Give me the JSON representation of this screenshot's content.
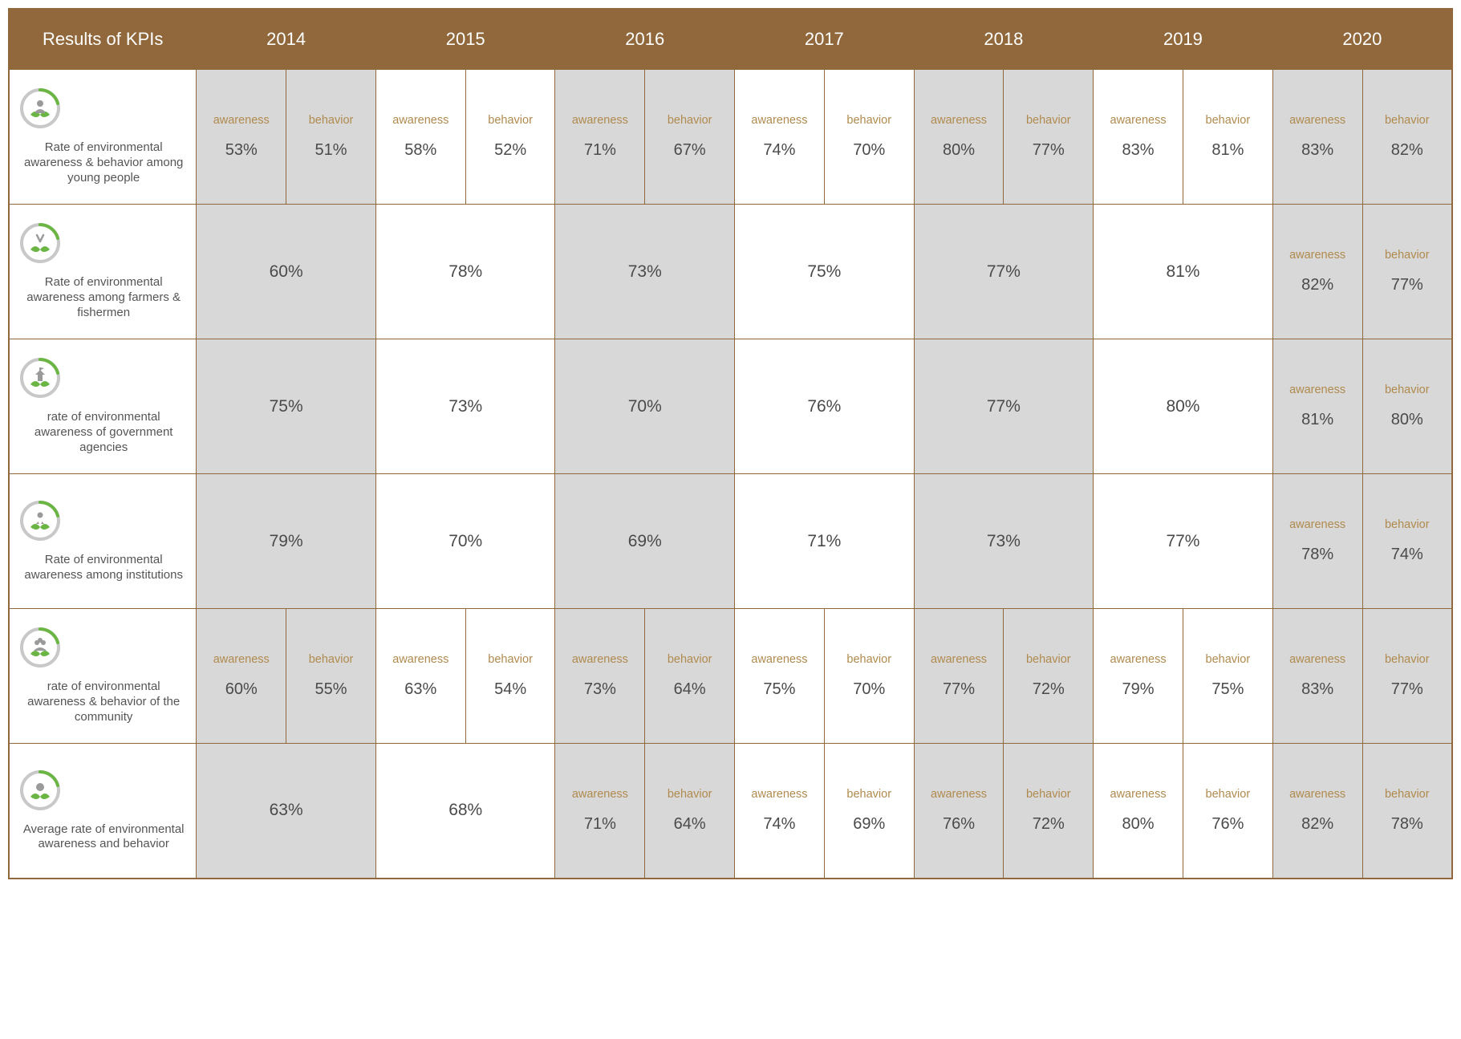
{
  "colors": {
    "header_bg": "#91683b",
    "header_text": "#ffffff",
    "border": "#91683b",
    "shade_bg": "#d8d8d8",
    "noshade_bg": "#ffffff",
    "label_color": "#b08a4e",
    "value_color": "#4a4a4a",
    "rowlabel_color": "#555555"
  },
  "header": {
    "title": "Results of KPIs",
    "years": [
      "2014",
      "2015",
      "2016",
      "2017",
      "2018",
      "2019",
      "2020"
    ]
  },
  "sub_labels": {
    "a": "awareness",
    "b": "behavior"
  },
  "rows": [
    {
      "icon": "person",
      "label": "Rate of environmental awareness & behavior among young people",
      "cells": [
        {
          "split": true,
          "a": "53%",
          "b": "51%",
          "shade": true
        },
        {
          "split": true,
          "a": "58%",
          "b": "52%",
          "shade": false
        },
        {
          "split": true,
          "a": "71%",
          "b": "67%",
          "shade": true
        },
        {
          "split": true,
          "a": "74%",
          "b": "70%",
          "shade": false
        },
        {
          "split": true,
          "a": "80%",
          "b": "77%",
          "shade": true
        },
        {
          "split": true,
          "a": "83%",
          "b": "81%",
          "shade": false
        },
        {
          "split": true,
          "a": "83%",
          "b": "82%",
          "shade": true
        }
      ]
    },
    {
      "icon": "tools",
      "label": "Rate of environmental awareness among farmers & fishermen",
      "cells": [
        {
          "split": false,
          "v": "60%",
          "shade": true
        },
        {
          "split": false,
          "v": "78%",
          "shade": false
        },
        {
          "split": false,
          "v": "73%",
          "shade": true
        },
        {
          "split": false,
          "v": "75%",
          "shade": false
        },
        {
          "split": false,
          "v": "77%",
          "shade": true
        },
        {
          "split": false,
          "v": "81%",
          "shade": false
        },
        {
          "split": true,
          "a": "82%",
          "b": "77%",
          "shade": true
        }
      ]
    },
    {
      "icon": "gov",
      "label": "rate of environmental awareness of government agencies",
      "cells": [
        {
          "split": false,
          "v": "75%",
          "shade": true
        },
        {
          "split": false,
          "v": "73%",
          "shade": false
        },
        {
          "split": false,
          "v": "70%",
          "shade": true
        },
        {
          "split": false,
          "v": "76%",
          "shade": false
        },
        {
          "split": false,
          "v": "77%",
          "shade": true
        },
        {
          "split": false,
          "v": "80%",
          "shade": false
        },
        {
          "split": true,
          "a": "81%",
          "b": "80%",
          "shade": true
        }
      ]
    },
    {
      "icon": "inst",
      "label": "Rate of environmental awareness among institutions",
      "cells": [
        {
          "split": false,
          "v": "79%",
          "shade": true
        },
        {
          "split": false,
          "v": "70%",
          "shade": false
        },
        {
          "split": false,
          "v": "69%",
          "shade": true
        },
        {
          "split": false,
          "v": "71%",
          "shade": false
        },
        {
          "split": false,
          "v": "73%",
          "shade": true
        },
        {
          "split": false,
          "v": "77%",
          "shade": false
        },
        {
          "split": true,
          "a": "78%",
          "b": "74%",
          "shade": true
        }
      ]
    },
    {
      "icon": "community",
      "label": "rate of environmental awareness & behavior of the community",
      "cells": [
        {
          "split": true,
          "a": "60%",
          "b": "55%",
          "shade": true
        },
        {
          "split": true,
          "a": "63%",
          "b": "54%",
          "shade": false
        },
        {
          "split": true,
          "a": "73%",
          "b": "64%",
          "shade": true
        },
        {
          "split": true,
          "a": "75%",
          "b": "70%",
          "shade": false
        },
        {
          "split": true,
          "a": "77%",
          "b": "72%",
          "shade": true
        },
        {
          "split": true,
          "a": "79%",
          "b": "75%",
          "shade": false
        },
        {
          "split": true,
          "a": "83%",
          "b": "77%",
          "shade": true
        }
      ]
    },
    {
      "icon": "avg",
      "label": "Average rate of environmental awareness and behavior",
      "cells": [
        {
          "split": false,
          "v": "63%",
          "shade": true
        },
        {
          "split": false,
          "v": "68%",
          "shade": false
        },
        {
          "split": true,
          "a": "71%",
          "b": "64%",
          "shade": true
        },
        {
          "split": true,
          "a": "74%",
          "b": "69%",
          "shade": false
        },
        {
          "split": true,
          "a": "76%",
          "b": "72%",
          "shade": true
        },
        {
          "split": true,
          "a": "80%",
          "b": "76%",
          "shade": false
        },
        {
          "split": true,
          "a": "82%",
          "b": "78%",
          "shade": true
        }
      ]
    }
  ]
}
